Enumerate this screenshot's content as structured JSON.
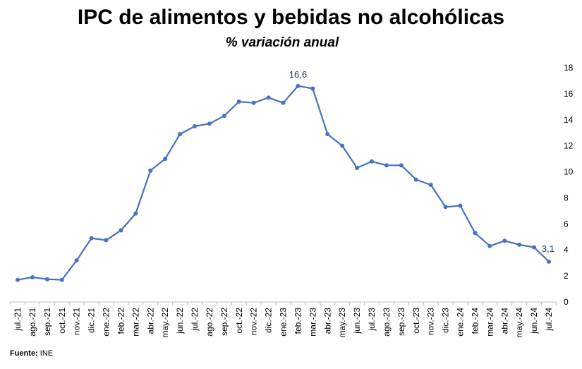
{
  "header": {
    "title": "IPC de alimentos y bebidas no alcohólicas",
    "subtitle": "% variación anual"
  },
  "footer": {
    "source_label": "Fuente:",
    "source_value": "INE"
  },
  "colors": {
    "line": "#4472c4",
    "marker": "#4472c4",
    "label": "#1f3864"
  },
  "chart_data": {
    "type": "line",
    "title": "IPC de alimentos y bebidas no alcohólicas",
    "subtitle": "% variación anual",
    "xlabel": "",
    "ylabel": "",
    "ylim": [
      0,
      18
    ],
    "yticks": [
      0,
      2,
      4,
      6,
      8,
      10,
      12,
      14,
      16,
      18
    ],
    "y_axis_position": "right",
    "grid": false,
    "legend": "none",
    "categories": [
      "jul.-21",
      "ago.-21",
      "sep.-21",
      "oct.-21",
      "nov.-21",
      "dic.-21",
      "ene.-22",
      "feb.-22",
      "mar.-22",
      "abr.-22",
      "may.-22",
      "jun.-22",
      "jul.-22",
      "ago.-22",
      "sep.-22",
      "oct.-22",
      "nov.-22",
      "dic.-22",
      "ene.-23",
      "feb.-23",
      "mar.-23",
      "abr.-23",
      "may.-23",
      "jun.-23",
      "jul.-23",
      "ago.-23",
      "sep.-23",
      "oct.-23",
      "nov.-23",
      "dic.-23",
      "ene.-24",
      "feb.-24",
      "mar.-24",
      "abr.-24",
      "may.-24",
      "jun.-24",
      "jul.-24"
    ],
    "series": [
      {
        "values": [
          1.7,
          1.9,
          1.75,
          1.7,
          3.2,
          4.9,
          4.75,
          5.5,
          6.8,
          10.1,
          11.0,
          12.9,
          13.5,
          13.7,
          14.3,
          15.4,
          15.3,
          15.7,
          15.3,
          16.6,
          16.4,
          12.9,
          12.0,
          10.3,
          10.8,
          10.5,
          10.5,
          9.4,
          9.0,
          7.3,
          7.4,
          5.3,
          4.3,
          4.7,
          4.4,
          4.2,
          3.1
        ]
      }
    ],
    "annotations": [
      {
        "category": "feb.-23",
        "text": "16,6"
      },
      {
        "category": "jul.-24",
        "text": "3,1"
      }
    ]
  }
}
